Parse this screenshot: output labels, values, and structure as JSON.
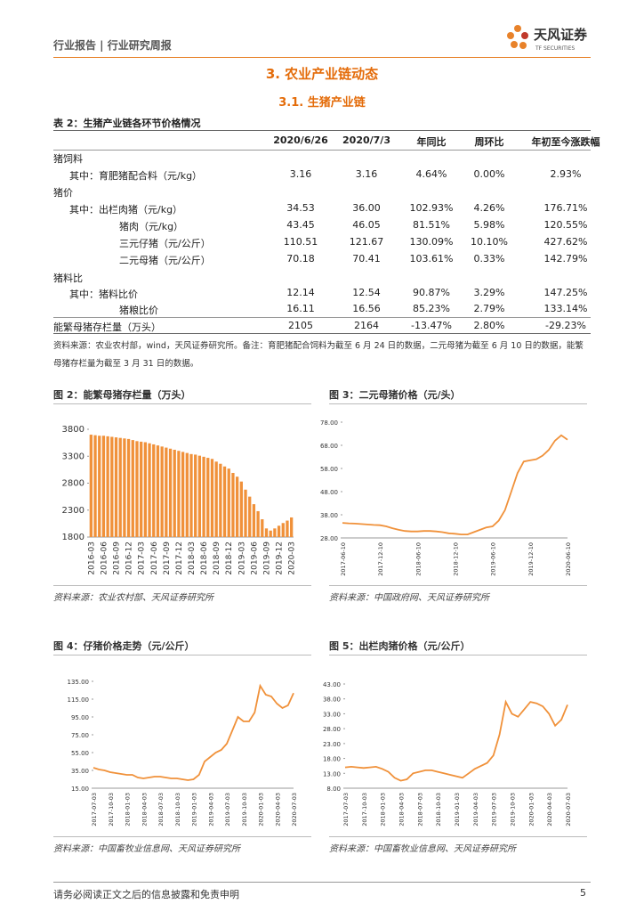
{
  "header": {
    "breadcrumb": "行业报告 | 行业研究周报",
    "brand": "天风证券",
    "brand_en": "TF SECURITIES"
  },
  "section": {
    "title": "3. 农业产业链动态",
    "subtitle": "3.1. 生猪产业链"
  },
  "table": {
    "title": "表 2：生猪产业链各环节价格情况",
    "columns": [
      "2020/6/26",
      "2020/7/3",
      "年同比",
      "周环比",
      "年初至今涨跌幅"
    ],
    "rows": [
      [
        "猪饲料"
      ],
      [
        "其中：育肥猪配合料（元/kg）",
        "3.16",
        "3.16",
        "4.64%",
        "0.00%",
        "2.93%"
      ],
      [
        "猪价"
      ],
      [
        "其中：出栏肉猪（元/kg）",
        "34.53",
        "36.00",
        "102.93%",
        "4.26%",
        "176.71%"
      ],
      [
        "猪肉（元/kg）",
        "43.45",
        "46.05",
        "81.51%",
        "5.98%",
        "120.55%"
      ],
      [
        "三元仔猪（元/公斤）",
        "110.51",
        "121.67",
        "130.09%",
        "10.10%",
        "427.62%"
      ],
      [
        "二元母猪（元/公斤）",
        "70.18",
        "70.41",
        "103.61%",
        "0.33%",
        "142.79%"
      ],
      [
        "猪料比"
      ],
      [
        "其中：猪料比价",
        "12.14",
        "12.54",
        "90.87%",
        "3.29%",
        "147.25%"
      ],
      [
        "猪粮比价",
        "16.11",
        "16.56",
        "85.23%",
        "2.79%",
        "133.14%"
      ],
      [
        "能繁母猪存栏量（万头）",
        "2105",
        "2164",
        "-13.47%",
        "2.80%",
        "-29.23%"
      ]
    ],
    "note": "资料来源：农业农村部，wind，天风证券研究所。备注：育肥猪配合饲料为截至 6 月 24 日的数据，二元母猪为截至 6 月 10 日的数据，能繁母猪存栏量为截至 3 月 31 日的数据。"
  },
  "chart_data": [
    {
      "type": "bar",
      "title": "图 2：能繁母猪存栏量（万头）",
      "source": "资料来源：农业农村部、天风证券研究所",
      "color": "#f0913a",
      "categories": [
        "2016-03",
        null,
        null,
        "2016-06",
        null,
        null,
        "2016-09",
        null,
        null,
        "2016-12",
        null,
        null,
        "2017-03",
        null,
        null,
        "2017-06",
        null,
        null,
        "2017-09",
        null,
        null,
        "2017-12",
        null,
        null,
        "2018-03",
        null,
        null,
        "2018-06",
        null,
        null,
        "2018-09",
        null,
        null,
        "2018-12",
        null,
        null,
        "2019-03",
        null,
        null,
        "2019-06",
        null,
        null,
        "2019-09",
        null,
        null,
        "2019-12",
        null,
        null,
        "2020-03"
      ],
      "values": [
        3700,
        3690,
        3680,
        3680,
        3670,
        3660,
        3650,
        3640,
        3630,
        3620,
        3600,
        3580,
        3570,
        3560,
        3540,
        3520,
        3500,
        3480,
        3460,
        3440,
        3420,
        3400,
        3380,
        3360,
        3340,
        3330,
        3310,
        3290,
        3270,
        3250,
        3200,
        3160,
        3110,
        3070,
        2990,
        2920,
        2830,
        2680,
        2550,
        2410,
        2280,
        2130,
        1960,
        1920,
        1960,
        2010,
        2060,
        2105,
        2164
      ],
      "ylim": [
        1800,
        3800
      ],
      "yticks": [
        1800,
        2300,
        2800,
        3300,
        3800
      ]
    },
    {
      "type": "line",
      "title": "图 3：二元母猪价格（元/头）",
      "source": "资料来源：中国政府网、天风证券研究所",
      "color": "#f0913a",
      "categories": [
        "2017-06-10",
        null,
        null,
        null,
        null,
        null,
        "2017-12-10",
        null,
        null,
        null,
        null,
        null,
        "2018-06-10",
        null,
        null,
        null,
        null,
        null,
        "2018-12-10",
        null,
        null,
        null,
        null,
        null,
        "2019-06-10",
        null,
        null,
        null,
        null,
        null,
        "2019-12-10",
        null,
        null,
        null,
        null,
        null,
        "2020-06-10"
      ],
      "values": [
        34.5,
        34.3,
        34.2,
        34.0,
        33.8,
        33.6,
        33.5,
        33.0,
        32.2,
        31.5,
        31.0,
        30.8,
        30.8,
        31.0,
        31.0,
        30.8,
        30.5,
        30.0,
        29.8,
        29.5,
        29.5,
        30.5,
        31.5,
        32.5,
        33.0,
        35.5,
        40.0,
        48.0,
        56.0,
        61.0,
        61.5,
        62.0,
        63.5,
        66.0,
        70.0,
        72.3,
        70.41
      ],
      "ylim": [
        28,
        78
      ],
      "yticks": [
        {
          "value": 28,
          "label": "28.00"
        },
        {
          "value": 38,
          "label": "38.00"
        },
        {
          "value": 48,
          "label": "48.00"
        },
        {
          "value": 58,
          "label": "58.00"
        },
        {
          "value": 68,
          "label": "68.00"
        },
        {
          "value": 78,
          "label": "78.00"
        }
      ]
    },
    {
      "type": "line",
      "title": "图 4：仔猪价格走势（元/公斤）",
      "source": "资料来源：中国畜牧业信息网、天风证券研究所",
      "color": "#f0913a",
      "categories": [
        "2017-07-03",
        null,
        null,
        "2017-10-03",
        null,
        null,
        "2018-01-03",
        null,
        null,
        "2018-04-03",
        null,
        null,
        "2018-07-03",
        null,
        null,
        "2018-10-03",
        null,
        null,
        "2019-01-03",
        null,
        null,
        "2019-04-03",
        null,
        null,
        "2019-07-03",
        null,
        null,
        "2019-10-03",
        null,
        null,
        "2020-01-03",
        null,
        null,
        "2020-04-03",
        null,
        null,
        "2020-07-03"
      ],
      "values": [
        38,
        36,
        35,
        33,
        32,
        31,
        30,
        30,
        27,
        26,
        27,
        28,
        28,
        27,
        26,
        26,
        25,
        24,
        25,
        30,
        45,
        50,
        55,
        58,
        65,
        80,
        95,
        90,
        90,
        100,
        130,
        120,
        118,
        110,
        105,
        108,
        121.67
      ],
      "ylim": [
        15,
        135
      ],
      "yticks": [
        {
          "value": 15,
          "label": "15.00"
        },
        {
          "value": 35,
          "label": "35.00"
        },
        {
          "value": 55,
          "label": "55.00"
        },
        {
          "value": 75,
          "label": "75.00"
        },
        {
          "value": 95,
          "label": "95.00"
        },
        {
          "value": 115,
          "label": "115.00"
        },
        {
          "value": 135,
          "label": "135.00"
        }
      ]
    },
    {
      "type": "line",
      "title": "图 5：出栏肉猪价格（元/公斤）",
      "source": "资料来源：中国畜牧业信息网、天风证券研究所",
      "color": "#f0913a",
      "categories": [
        "2017-07-03",
        null,
        null,
        "2017-10-03",
        null,
        null,
        "2018-01-03",
        null,
        null,
        "2018-04-03",
        null,
        null,
        "2018-07-03",
        null,
        null,
        "2018-10-03",
        null,
        null,
        "2019-01-03",
        null,
        null,
        "2019-04-03",
        null,
        null,
        "2019-07-03",
        null,
        null,
        "2019-10-03",
        null,
        null,
        "2020-01-03",
        null,
        null,
        "2020-04-03",
        null,
        null,
        "2020-07-03"
      ],
      "values": [
        15.0,
        15.2,
        15.0,
        14.8,
        15.0,
        15.2,
        14.5,
        13.5,
        11.5,
        10.5,
        11.0,
        13.0,
        13.5,
        14.0,
        14.0,
        13.5,
        13.0,
        12.5,
        12.0,
        11.5,
        13.0,
        14.5,
        15.5,
        16.5,
        19.0,
        26.0,
        37.0,
        33.0,
        32.0,
        34.5,
        37.0,
        36.5,
        35.5,
        33.0,
        29.0,
        31.0,
        36.0
      ],
      "ylim": [
        8,
        43
      ],
      "yticks": [
        {
          "value": 8,
          "label": "8.00"
        },
        {
          "value": 13,
          "label": "13.00"
        },
        {
          "value": 18,
          "label": "18.00"
        },
        {
          "value": 23,
          "label": "23.00"
        },
        {
          "value": 28,
          "label": "28.00"
        },
        {
          "value": 33,
          "label": "33.00"
        },
        {
          "value": 38,
          "label": "38.00"
        },
        {
          "value": 43,
          "label": "43.00"
        }
      ]
    }
  ],
  "footer": {
    "disclaimer": "请务必阅读正文之后的信息披露和免责申明",
    "page": "5"
  }
}
